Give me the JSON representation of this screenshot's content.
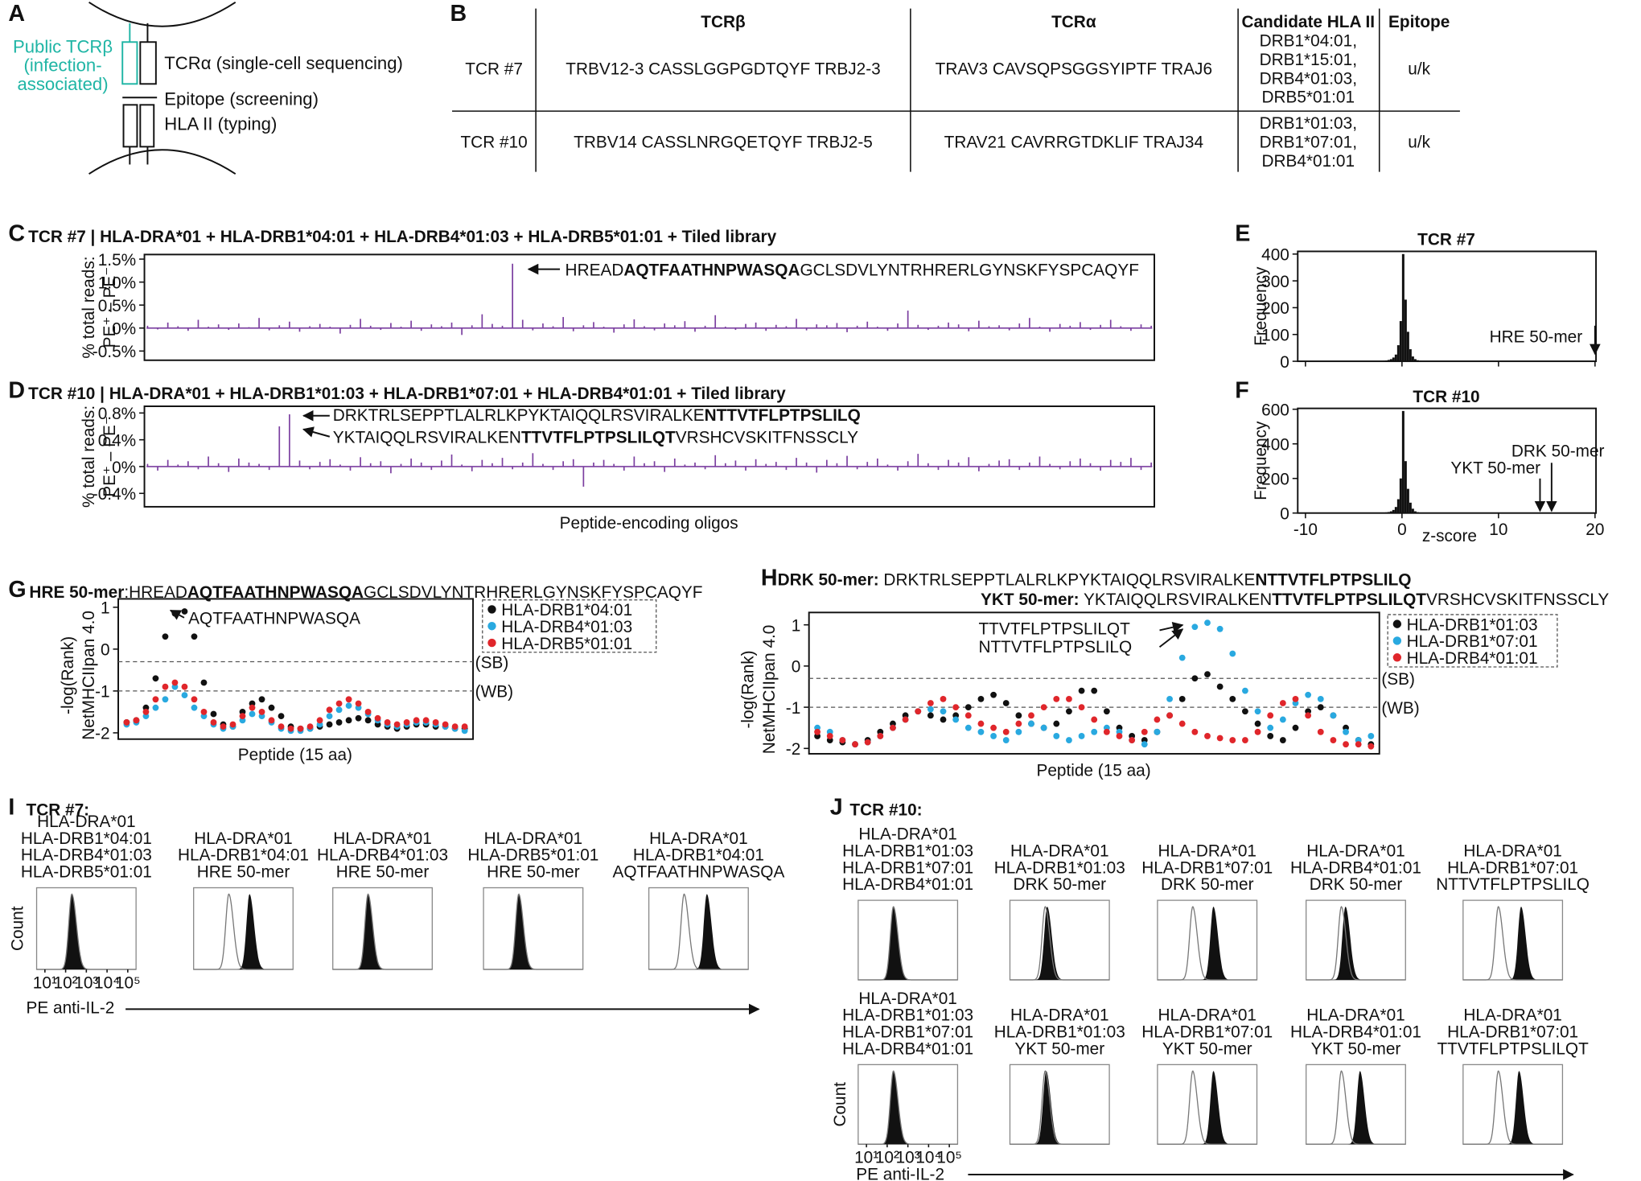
{
  "panel_labels": [
    "A",
    "B",
    "C",
    "D",
    "E",
    "F",
    "G",
    "H",
    "I",
    "J"
  ],
  "diagram": {
    "public_tcrb": [
      "Public TCRβ",
      "(infection-",
      "associated)"
    ],
    "tcra": "TCRα (single-cell sequencing)",
    "epitope": "Epitope (screening)",
    "hla": "HLA II (typing)"
  },
  "table": {
    "header": [
      "TCRβ",
      "TCRα",
      "Candidate HLA II",
      "Epitope"
    ],
    "rows": [
      [
        "TCR #7",
        "TRBV12-3 CASSLGGPGDTQYF TRBJ2-3",
        "TRAV3 CAVSQPSGGSYIPTF TRAJ6",
        [
          "DRB1*04:01,",
          "DRB1*15:01,",
          "DRB4*01:03,",
          "DRB5*01:01"
        ],
        "u/k"
      ],
      [
        "TCR #10",
        "TRBV14 CASSLNRGQETQYF TRBJ2-5",
        "TRAV21 CAVRRGTDKLIF TRAJ34",
        [
          "DRB1*01:03,",
          "DRB1*07:01,",
          "DRB4*01:01"
        ],
        "u/k"
      ]
    ]
  },
  "chart_data": [
    {
      "type": "spike",
      "title": "TCR #7 | HLA-DRA*01 + HLA-DRB1*04:01 + HLA-DRB4*01:03 + HLA-DRB5*01:01 + Tiled library",
      "ylabel": [
        "% total reads:",
        "PE⁺ – PE⁻"
      ],
      "color": "#7b3fa0",
      "ylim": [
        -0.7,
        1.6
      ],
      "yticks": [
        {
          "value": 1.5,
          "label": "1.5%"
        },
        {
          "value": 1.0,
          "label": "1.0%"
        },
        {
          "value": 0.5,
          "label": "0.5%"
        },
        {
          "value": 0,
          "label": "0%"
        },
        {
          "value": -0.5,
          "label": "-0.5%"
        }
      ],
      "annotations": [
        [
          {
            "text": "HREAD"
          },
          {
            "text": "AQTFAATHNPWASQA",
            "bold": true
          },
          {
            "text": "GCLSDVLYNTRHRERLGYNSKFYSPCAQYF"
          }
        ]
      ],
      "values": [
        0.05,
        -0.03,
        0.12,
        0.04,
        -0.06,
        0.18,
        0.03,
        0.08,
        -0.04,
        0.1,
        0.02,
        0.22,
        -0.05,
        0.06,
        0.14,
        -0.08,
        0.04,
        0.09,
        0.03,
        -0.12,
        0.07,
        0.2,
        0.05,
        -0.04,
        0.11,
        0.03,
        0.16,
        -0.06,
        0.08,
        0.04,
        0.12,
        -0.15,
        0.06,
        0.3,
        0.09,
        0.05,
        1.4,
        0.18,
        -0.05,
        0.1,
        0.04,
        0.24,
        -0.07,
        0.06,
        0.13,
        0.03,
        -0.1,
        0.08,
        0.19,
        0.04,
        -0.05,
        0.1,
        0.06,
        0.15,
        -0.08,
        0.05,
        0.28,
        0.03,
        -0.04,
        0.09,
        0.12,
        -0.06,
        0.07,
        0.04,
        0.2,
        -0.05,
        0.08,
        0.06,
        0.11,
        -0.09,
        0.05,
        0.14,
        0.03,
        -0.06,
        0.1,
        0.38,
        0.07,
        -0.04,
        0.05,
        0.12,
        0.08,
        -0.07,
        0.16,
        0.04,
        0.06,
        -0.05,
        0.1,
        0.22,
        0.03,
        -0.08,
        0.09,
        0.05,
        0.13,
        -0.04,
        0.07,
        0.18,
        0.04,
        -0.06,
        0.08,
        0.05
      ]
    },
    {
      "type": "spike",
      "title": "TCR #10 | HLA-DRA*01 + HLA-DRB1*01:03 + HLA-DRB1*07:01 + HLA-DRB4*01:01 + Tiled library",
      "ylabel": [
        "% total reads:",
        "PE⁺ – PE⁻"
      ],
      "xlabel": "Peptide-encoding oligos",
      "color": "#7b3fa0",
      "ylim": [
        -0.6,
        0.9
      ],
      "yticks": [
        {
          "value": 0.8,
          "label": "0.8%"
        },
        {
          "value": 0.4,
          "label": "0.4%"
        },
        {
          "value": 0,
          "label": "0%"
        },
        {
          "value": -0.4,
          "label": "-0.4%"
        }
      ],
      "annotations": [
        [
          {
            "text": "DRKTRLSEPPTLALRLKPYKTAIQQLRSVIRALKE"
          },
          {
            "text": "NTTVTFLPTPSLILQ",
            "bold": true
          }
        ],
        [
          {
            "text": "YKTAIQQLRSVIRALKEN"
          },
          {
            "text": "TTVTFLPTPSLILQT",
            "bold": true
          },
          {
            "text": "VRSHCVSKITFNSSCLY"
          }
        ]
      ],
      "values": [
        0.04,
        -0.06,
        0.1,
        0.03,
        0.08,
        -0.04,
        0.15,
        0.05,
        -0.08,
        0.12,
        0.06,
        0.04,
        -0.05,
        0.6,
        0.78,
        0.09,
        -0.04,
        0.07,
        0.11,
        0.03,
        -0.06,
        0.14,
        0.05,
        0.08,
        -0.1,
        0.04,
        0.12,
        0.06,
        -0.05,
        0.09,
        0.18,
        0.03,
        -0.07,
        0.1,
        0.05,
        0.13,
        -0.04,
        0.06,
        0.2,
        0.04,
        -0.05,
        0.08,
        0.11,
        -0.3,
        0.06,
        0.1,
        0.04,
        -0.06,
        0.15,
        0.05,
        0.08,
        -0.08,
        0.12,
        0.03,
        0.06,
        -0.04,
        0.17,
        0.05,
        0.09,
        -0.06,
        0.11,
        0.04,
        0.07,
        -0.05,
        0.13,
        0.06,
        -0.09,
        0.1,
        0.05,
        0.16,
        -0.04,
        0.07,
        0.12,
        0.03,
        -0.06,
        0.08,
        0.19,
        0.05,
        -0.05,
        0.1,
        0.06,
        0.14,
        -0.07,
        0.04,
        0.09,
        0.11,
        -0.05,
        0.06,
        0.15,
        0.04,
        -0.04,
        0.08,
        0.12,
        0.05,
        -0.06,
        0.1,
        0.07,
        0.13,
        -0.05,
        0.06
      ]
    },
    {
      "type": "histogram",
      "title": "TCR #7",
      "ylabel": "Frequency",
      "color": "#111111",
      "xlim": [
        -10.8,
        20.1
      ],
      "xticks": [
        -10,
        0,
        10,
        20
      ],
      "xtick_labels": false,
      "ylim": [
        0,
        410
      ],
      "yticks": [
        0,
        100,
        200,
        300,
        400
      ],
      "bins": [
        -2.5,
        -2.25,
        -2,
        -1.75,
        -1.5,
        -1.25,
        -1,
        -0.75,
        -0.5,
        -0.25,
        0,
        0.25,
        0.5,
        0.75,
        1,
        1.25,
        1.5,
        1.75,
        2,
        2.25,
        2.5
      ],
      "counts": [
        1,
        1,
        2,
        3,
        5,
        8,
        14,
        25,
        60,
        150,
        400,
        230,
        110,
        45,
        18,
        8,
        4,
        2,
        1,
        1
      ],
      "annotations": [
        {
          "text": "HRE 50-mer",
          "x": 20
        }
      ]
    },
    {
      "type": "histogram",
      "title": "TCR #10",
      "ylabel": "Frequency",
      "xlabel": "z-score",
      "color": "#111111",
      "xlim": [
        -10.8,
        20.1
      ],
      "xticks": [
        -10,
        0,
        10,
        20
      ],
      "xtick_labels": true,
      "ylim": [
        0,
        605
      ],
      "yticks": [
        0,
        200,
        400,
        600
      ],
      "bins": [
        -2.5,
        -2.25,
        -2,
        -1.75,
        -1.5,
        -1.25,
        -1,
        -0.75,
        -0.5,
        -0.25,
        0,
        0.25,
        0.5,
        0.75,
        1,
        1.25,
        1.5,
        1.75,
        2,
        2.25,
        2.5
      ],
      "counts": [
        1,
        1,
        2,
        4,
        6,
        10,
        18,
        35,
        80,
        200,
        590,
        300,
        140,
        60,
        25,
        10,
        5,
        2,
        1,
        1
      ],
      "annotations": [
        {
          "text": "DRK 50-mer",
          "x": 15.5
        },
        {
          "text": "YKT 50-mer",
          "x": 14.3
        }
      ]
    },
    {
      "type": "scatter",
      "title_lines": [
        [
          {
            "text": "HRE 50-mer",
            "bold": true
          },
          {
            "text": ":HREAD"
          },
          {
            "text": "AQTFAATHNPWASQA",
            "bold": true
          },
          {
            "text": "GCLSDVLYNTRHRERLGYNSKFYSPCAQYF"
          }
        ]
      ],
      "ylabel": [
        "-log(Rank)",
        "NetMHCIIpan 4.0"
      ],
      "xlabel": "Peptide (15 aa)",
      "ylim": [
        -2.15,
        1.2
      ],
      "yticks": [
        1,
        0,
        -1,
        -2
      ],
      "thresholds": [
        {
          "value": -0.3,
          "label": "(SB)"
        },
        {
          "value": -1,
          "label": "(WB)"
        }
      ],
      "annotations": [
        "AQTFAATHNPWASQA"
      ],
      "series": [
        {
          "name": "HLA-DRB1*04:01",
          "color": "#111111",
          "values": [
            -1.75,
            -1.7,
            -1.4,
            -0.7,
            0.3,
            0.85,
            0.9,
            0.3,
            -0.8,
            -1.55,
            -1.8,
            -1.85,
            -1.5,
            -1.3,
            -1.2,
            -1.4,
            -1.6,
            -1.85,
            -1.9,
            -1.9,
            -1.85,
            -1.8,
            -1.75,
            -1.7,
            -1.65,
            -1.7,
            -1.8,
            -1.85,
            -1.9,
            -1.85,
            -1.8,
            -1.8,
            -1.85,
            -1.85,
            -1.9,
            -1.9
          ]
        },
        {
          "name": "HLA-DRB4*01:03",
          "color": "#29a9e0",
          "values": [
            -1.8,
            -1.75,
            -1.6,
            -1.4,
            -1.2,
            -0.9,
            -1.1,
            -1.4,
            -1.6,
            -1.8,
            -1.9,
            -1.85,
            -1.7,
            -1.55,
            -1.6,
            -1.75,
            -1.9,
            -1.95,
            -1.95,
            -1.9,
            -1.8,
            -1.6,
            -1.45,
            -1.35,
            -1.4,
            -1.55,
            -1.7,
            -1.8,
            -1.85,
            -1.8,
            -1.75,
            -1.75,
            -1.8,
            -1.85,
            -1.9,
            -1.95
          ]
        },
        {
          "name": "HLA-DRB5*01:01",
          "color": "#e0262b",
          "values": [
            -1.75,
            -1.7,
            -1.5,
            -1.2,
            -0.9,
            -0.8,
            -0.9,
            -1.2,
            -1.5,
            -1.75,
            -1.85,
            -1.8,
            -1.6,
            -1.4,
            -1.5,
            -1.7,
            -1.85,
            -1.9,
            -1.9,
            -1.85,
            -1.7,
            -1.45,
            -1.3,
            -1.2,
            -1.3,
            -1.5,
            -1.65,
            -1.75,
            -1.8,
            -1.75,
            -1.7,
            -1.7,
            -1.75,
            -1.8,
            -1.85,
            -1.85
          ]
        }
      ]
    },
    {
      "type": "scatter",
      "title_lines": [
        [
          {
            "text": "DRK 50-mer:",
            "bold": true
          },
          {
            "text": " DRKTRLSEPPTLALRLKPYKTAIQQLRSVIRALKE"
          },
          {
            "text": "NTTVTFLPTPSLILQ",
            "bold": true
          }
        ],
        [
          {
            "text": "YKT 50-mer:",
            "bold": true
          },
          {
            "text": " YKTAIQQLRSVIRALKEN"
          },
          {
            "text": "TTVTFLPTPSLILQT",
            "bold": true
          },
          {
            "text": "VRSHCVSKITFNSSCLY"
          }
        ]
      ],
      "ylabel": [
        "-log(Rank)",
        "NetMHCIIpan 4.0"
      ],
      "xlabel": "Peptide (15 aa)",
      "ylim": [
        -2.13,
        1.3
      ],
      "yticks": [
        1,
        0,
        -1,
        -2
      ],
      "thresholds": [
        {
          "value": -0.3,
          "label": "(SB)"
        },
        {
          "value": -1,
          "label": "(WB)"
        }
      ],
      "annotations": [
        "TTVTFLPTPSLILQT",
        "NTTVTFLPTPSLILQ"
      ],
      "series": [
        {
          "name": "HLA-DRB1*01:03",
          "color": "#111111",
          "values": [
            -1.7,
            -1.8,
            -1.85,
            -1.9,
            -1.8,
            -1.6,
            -1.4,
            -1.2,
            -1.1,
            -1.2,
            -1.3,
            -1.2,
            -1.0,
            -0.8,
            -0.7,
            -0.9,
            -1.2,
            -1.4,
            -1.5,
            -1.4,
            -1.1,
            -0.6,
            -0.6,
            -1.1,
            -1.5,
            -1.7,
            -1.8,
            -1.6,
            -1.2,
            -0.8,
            -0.3,
            -0.2,
            -0.5,
            -0.8,
            -1.1,
            -1.4,
            -1.7,
            -1.8,
            -1.5,
            -1.1,
            -1.0,
            -1.2,
            -1.5,
            -1.8,
            -1.9
          ]
        },
        {
          "name": "HLA-DRB1*07:01",
          "color": "#29a9e0",
          "values": [
            -1.5,
            -1.6,
            -1.8,
            -1.9,
            -1.85,
            -1.7,
            -1.5,
            -1.3,
            -1.1,
            -1.05,
            -1.1,
            -1.3,
            -1.5,
            -1.6,
            -1.7,
            -1.8,
            -1.6,
            -1.4,
            -1.5,
            -1.7,
            -1.8,
            -1.7,
            -1.6,
            -1.5,
            -1.6,
            -1.8,
            -1.9,
            -1.6,
            -0.8,
            0.2,
            0.95,
            1.05,
            0.9,
            0.3,
            -0.6,
            -1.1,
            -1.5,
            -1.3,
            -0.9,
            -0.7,
            -0.8,
            -1.2,
            -1.6,
            -1.8,
            -1.7
          ]
        },
        {
          "name": "HLA-DRB4*01:01",
          "color": "#e0262b",
          "values": [
            -1.6,
            -1.7,
            -1.8,
            -1.9,
            -1.85,
            -1.7,
            -1.5,
            -1.3,
            -1.1,
            -0.9,
            -0.8,
            -1.0,
            -1.2,
            -1.4,
            -1.5,
            -1.6,
            -1.4,
            -1.2,
            -1.0,
            -0.8,
            -0.8,
            -1.0,
            -1.3,
            -1.6,
            -1.7,
            -1.8,
            -1.6,
            -1.3,
            -1.2,
            -1.4,
            -1.6,
            -1.7,
            -1.75,
            -1.8,
            -1.8,
            -1.6,
            -1.2,
            -0.9,
            -0.8,
            -1.2,
            -1.6,
            -1.8,
            -1.9,
            -1.9,
            -1.95
          ]
        }
      ]
    },
    {
      "type": "flow",
      "title": "TCR #7:",
      "ylabel": "Count",
      "xlabel": "PE anti-IL-2",
      "xlim": [
        0.6,
        5.4
      ],
      "xticks": [
        {
          "value": 1,
          "label": "10¹"
        },
        {
          "value": 2,
          "label": "10²"
        },
        {
          "value": 3,
          "label": "10³"
        },
        {
          "value": 4,
          "label": "10⁴"
        },
        {
          "value": 5,
          "label": "10⁵"
        }
      ],
      "panels": [
        {
          "labels": [
            "HLA-DRA*01",
            "HLA-DRB1*04:01",
            "HLA-DRB4*01:03",
            "HLA-DRB5*01:01"
          ],
          "control": 2.3,
          "stimulated": 2.3
        },
        {
          "labels": [
            "HLA-DRA*01",
            "HLA-DRB1*04:01",
            "HRE 50-mer"
          ],
          "control": 2.3,
          "stimulated": 3.3
        },
        {
          "labels": [
            "HLA-DRA*01",
            "HLA-DRB4*01:03",
            "HRE 50-mer"
          ],
          "control": 2.3,
          "stimulated": 2.3
        },
        {
          "labels": [
            "HLA-DRA*01",
            "HLA-DRB5*01:01",
            "HRE 50-mer"
          ],
          "control": 2.3,
          "stimulated": 2.3
        },
        {
          "labels": [
            "HLA-DRA*01",
            "HLA-DRB1*04:01",
            "AQTFAATHNPWASQA"
          ],
          "control": 2.3,
          "stimulated": 3.4
        }
      ]
    },
    {
      "type": "flow",
      "title": "TCR #10:",
      "ylabel": "Count",
      "xlabel": "PE anti-IL-2",
      "xlim": [
        0.6,
        5.4
      ],
      "xticks": [
        {
          "value": 1,
          "label": "10¹"
        },
        {
          "value": 2,
          "label": "10²"
        },
        {
          "value": 3,
          "label": "10³"
        },
        {
          "value": 4,
          "label": "10⁴"
        },
        {
          "value": 5,
          "label": "10⁵"
        }
      ],
      "panels": [
        {
          "labels": [
            "HLA-DRA*01",
            "HLA-DRB1*01:03",
            "HLA-DRB1*07:01",
            "HLA-DRB4*01:01"
          ],
          "control": 2.3,
          "stimulated": 2.3
        },
        {
          "labels": [
            "HLA-DRA*01",
            "HLA-DRB1*01:03",
            "DRK 50-mer"
          ],
          "control": 2.3,
          "stimulated": 2.4
        },
        {
          "labels": [
            "HLA-DRA*01",
            "HLA-DRB1*07:01",
            "DRK 50-mer"
          ],
          "control": 2.3,
          "stimulated": 3.3
        },
        {
          "labels": [
            "HLA-DRA*01",
            "HLA-DRB4*01:01",
            "DRK 50-mer"
          ],
          "control": 2.3,
          "stimulated": 2.5
        },
        {
          "labels": [
            "HLA-DRA*01",
            "HLA-DRB1*07:01",
            "NTTVTFLPTPSLILQ"
          ],
          "control": 2.3,
          "stimulated": 3.4
        },
        {
          "labels": [
            "HLA-DRA*01",
            "HLA-DRB1*01:03",
            "HLA-DRB1*07:01",
            "HLA-DRB4*01:01"
          ],
          "control": 2.3,
          "stimulated": 2.3
        },
        {
          "labels": [
            "HLA-DRA*01",
            "HLA-DRB1*01:03",
            "YKT 50-mer"
          ],
          "control": 2.3,
          "stimulated": 2.35
        },
        {
          "labels": [
            "HLA-DRA*01",
            "HLA-DRB1*07:01",
            "YKT 50-mer"
          ],
          "control": 2.3,
          "stimulated": 3.3
        },
        {
          "labels": [
            "HLA-DRA*01",
            "HLA-DRB4*01:01",
            "YKT 50-mer"
          ],
          "control": 2.3,
          "stimulated": 3.2
        },
        {
          "labels": [
            "HLA-DRA*01",
            "HLA-DRB1*07:01",
            "TTVTFLPTPSLILQT"
          ],
          "control": 2.3,
          "stimulated": 3.3
        }
      ]
    }
  ]
}
